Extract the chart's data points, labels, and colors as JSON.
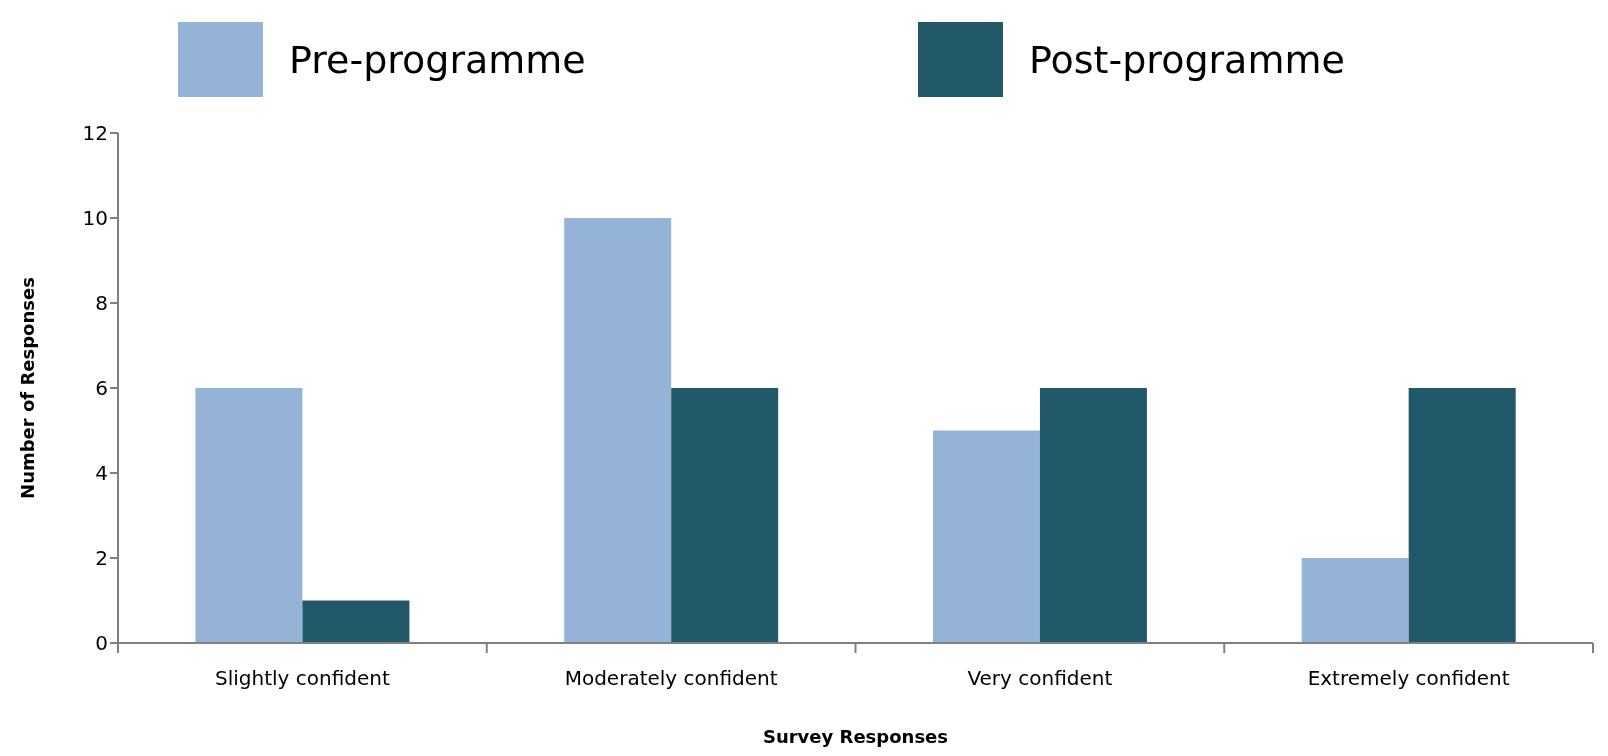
{
  "chart_data": {
    "type": "bar",
    "xlabel": "Survey Responses",
    "ylabel": "Number of Responses",
    "categories": [
      "Slightly confident",
      "Moderately confident",
      "Very confident",
      "Extremely confident"
    ],
    "series": [
      {
        "name": "Pre-programme",
        "color": "#95b3d7",
        "values": [
          6,
          10,
          5,
          2
        ]
      },
      {
        "name": "Post-programme",
        "color": "#215968",
        "values": [
          1,
          6,
          6,
          6
        ]
      }
    ],
    "ylim": [
      0,
      12
    ],
    "yticks": [
      0,
      2,
      4,
      6,
      8,
      10,
      12
    ],
    "grid": false,
    "legend": "top"
  }
}
